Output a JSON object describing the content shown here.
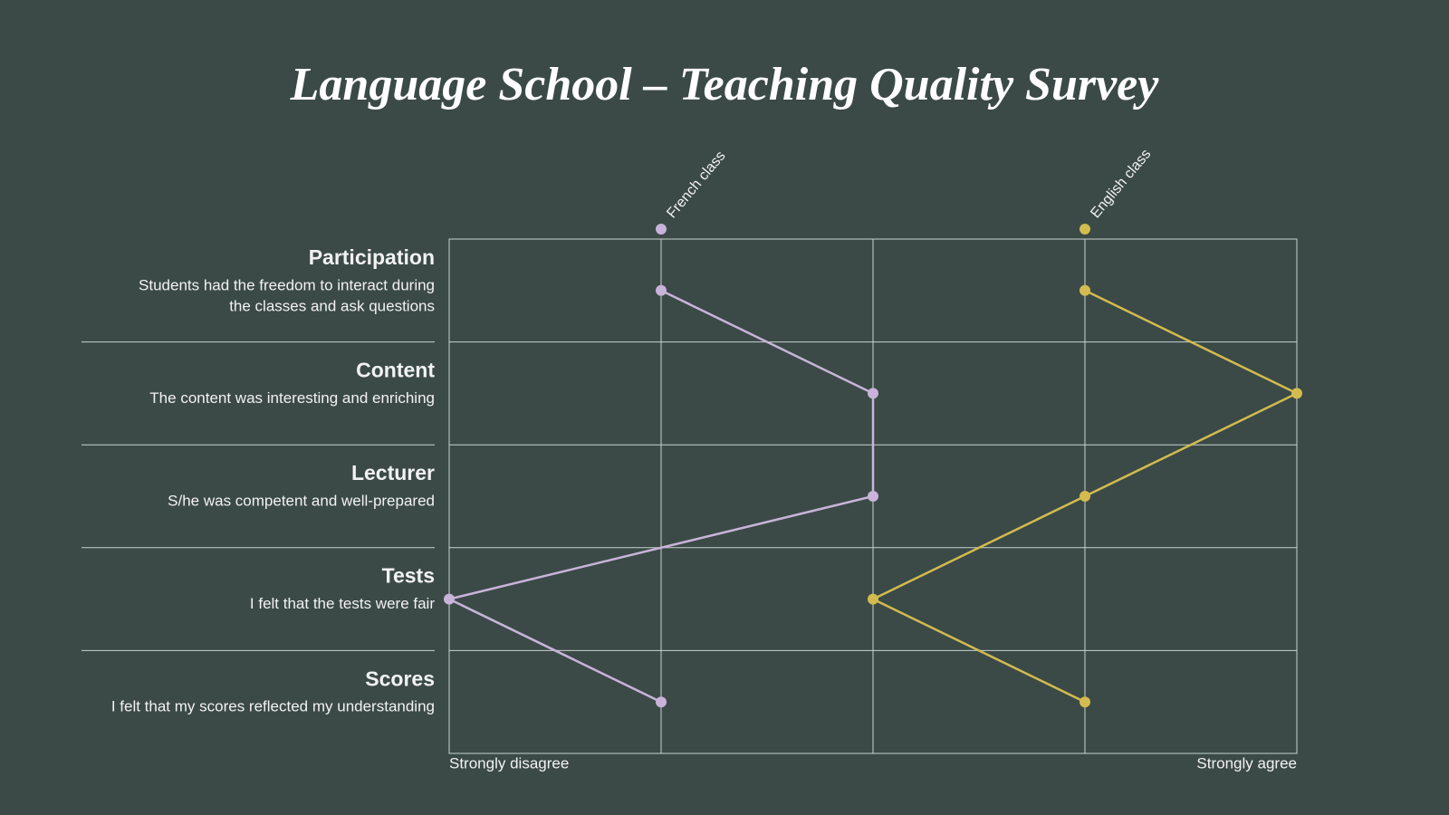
{
  "chart_data": {
    "type": "line",
    "orientation": "horizontal",
    "title": "Language School – Teaching Quality Survey",
    "categories": [
      "Participation",
      "Content",
      "Lecturer",
      "Tests",
      "Scores"
    ],
    "descriptions": [
      [
        "Students had the freedom to interact during",
        "the classes and ask questions"
      ],
      [
        "The content was interesting and enriching"
      ],
      [
        "S/he was competent and well-prepared"
      ],
      [
        "I felt that the tests were fair"
      ],
      [
        "I felt that my scores reflected my understanding"
      ]
    ],
    "series": [
      {
        "name": "French class",
        "color": "#c9b3da",
        "values": [
          2,
          3,
          3,
          1,
          2
        ]
      },
      {
        "name": "English class",
        "color": "#d3bb4f",
        "values": [
          4,
          5,
          4,
          3,
          4
        ]
      }
    ],
    "xlim": [
      1,
      5
    ],
    "xticks": [
      1,
      2,
      3,
      4,
      5
    ],
    "xlabels": [
      {
        "value": 1,
        "label": "Strongly disagree"
      },
      {
        "value": 5,
        "label": "Strongly agree"
      }
    ],
    "grid": true
  }
}
